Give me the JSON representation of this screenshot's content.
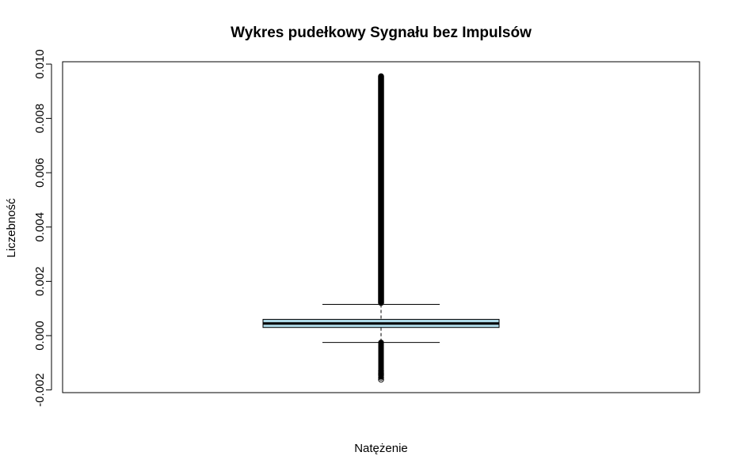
{
  "chart_data": {
    "type": "boxplot",
    "title": "Wykres pudełkowy Sygnału bez Impulsów",
    "xlabel": "Natężenie",
    "ylabel": "Liczebność",
    "ylim": [
      -0.0022,
      0.01
    ],
    "yticks": [
      -0.002,
      0.0,
      0.002,
      0.004,
      0.006,
      0.008,
      0.01
    ],
    "ytick_labels": [
      "-0.002",
      "0.000",
      "0.002",
      "0.004",
      "0.006",
      "0.008",
      "0.010"
    ],
    "box": {
      "whisker_low": -0.00025,
      "q1": 0.0003,
      "median": 0.00045,
      "q3": 0.0006,
      "whisker_high": 0.00115,
      "outlier_high_range": [
        0.00115,
        0.00955
      ],
      "outlier_low_range": [
        -0.0016,
        -0.00025
      ],
      "sparse_low_outliers": [
        -0.0013,
        -0.00138,
        -0.00145,
        -0.00155,
        -0.00162
      ]
    },
    "colors": {
      "box_fill": "#add8e6",
      "line": "#000000",
      "background": "#ffffff"
    },
    "grid": false,
    "legend": "none"
  }
}
